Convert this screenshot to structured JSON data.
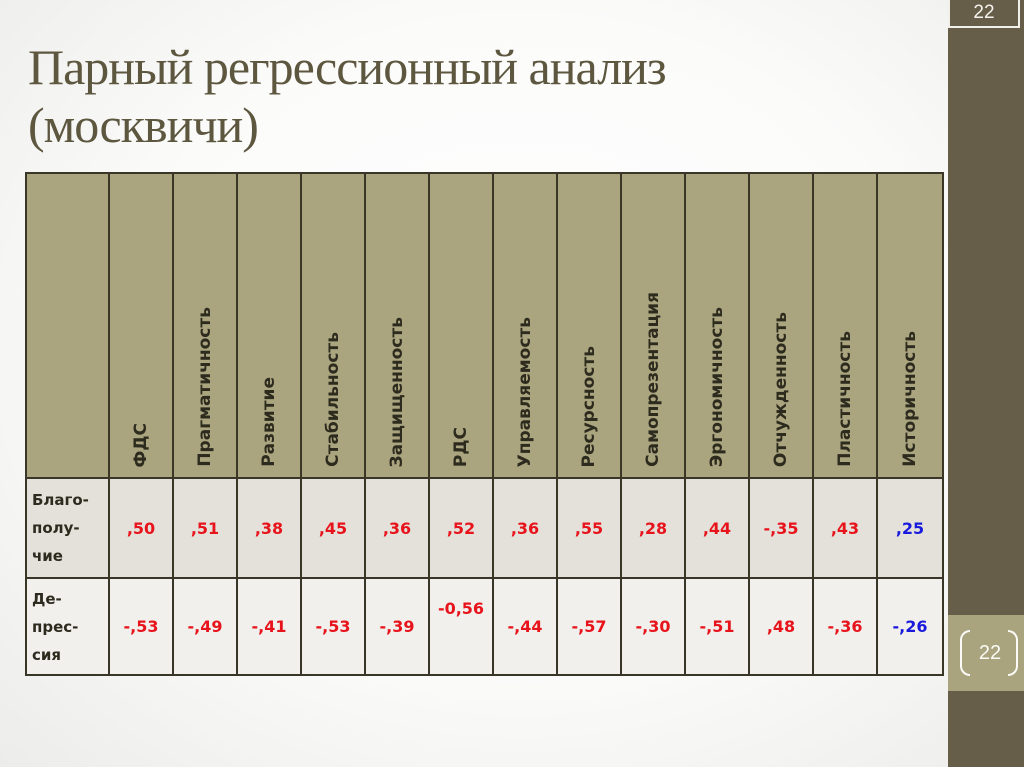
{
  "slide": {
    "title_line1": "Парный регрессионный анализ",
    "title_line2": "(москвичи)",
    "page_number_top": "22",
    "page_number_bottom": "22",
    "colors": {
      "sidebar": "#665e49",
      "sidebar_band": "#a9a47e",
      "header_fill": "#aaa57f",
      "row1_fill": "#e3e1da",
      "row2_fill": "#f1f0ed",
      "significant": "#e8141c",
      "non_significant": "#1a1adc",
      "title": "#5e573f"
    }
  },
  "table": {
    "columns": [
      "ФДС",
      "Прагматичность",
      "Развитие",
      "Стабильность",
      "Защищенность",
      "РДС",
      "Управляемость",
      "Ресурсность",
      "Самопрезентация",
      "Эргономичность",
      "Отчужденность",
      "Пластичность",
      "Историчность"
    ],
    "rows": [
      {
        "label_lines": [
          "Благо-",
          "полу-",
          "чие"
        ],
        "values": [
          ",50",
          ",51",
          ",38",
          ",45",
          ",36",
          ",52",
          ",36",
          ",55",
          ",28",
          ",44",
          "-,35",
          ",43",
          ",25"
        ],
        "colors": [
          "red",
          "red",
          "red",
          "red",
          "red",
          "red",
          "red",
          "red",
          "red",
          "red",
          "red",
          "red",
          "blue"
        ]
      },
      {
        "label_lines": [
          "Де-",
          "прес-",
          "сия"
        ],
        "values": [
          "-,53",
          "-,49",
          "-,41",
          "-,53",
          "-,39",
          "-0,56",
          "-,44",
          "-,57",
          "-,30",
          "-,51",
          ",48",
          "-,36",
          "-,26"
        ],
        "colors": [
          "red",
          "red",
          "red",
          "red",
          "red",
          "red",
          "red",
          "red",
          "red",
          "red",
          "red",
          "red",
          "blue"
        ]
      }
    ]
  }
}
